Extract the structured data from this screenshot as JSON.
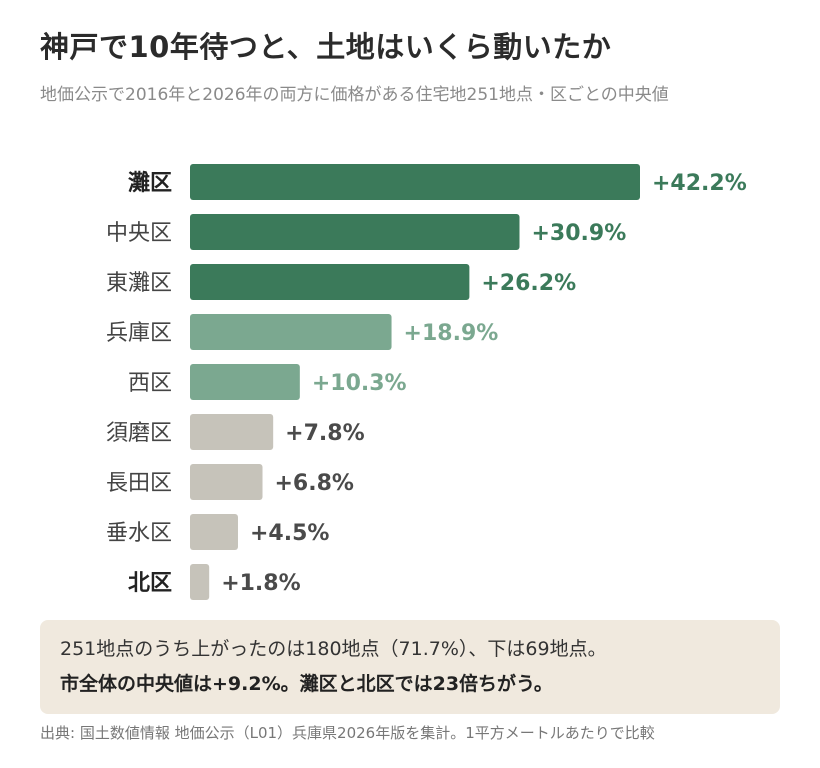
{
  "title": "神戸で10年待つと、土地はいくら動いたか",
  "subtitle": "地価公示で2016年と2026年の両方に価格がある住宅地251地点・区ごとの中央値",
  "chart_data": {
    "type": "bar",
    "orientation": "horizontal",
    "categories": [
      "灘区",
      "中央区",
      "東灘区",
      "兵庫区",
      "西区",
      "須磨区",
      "長田区",
      "垂水区",
      "北区"
    ],
    "values": [
      42.2,
      30.9,
      26.2,
      18.9,
      10.3,
      7.8,
      6.8,
      4.5,
      1.8
    ],
    "value_labels": [
      "+42.2%",
      "+30.9%",
      "+26.2%",
      "+18.9%",
      "+10.3%",
      "+7.8%",
      "+6.8%",
      "+4.5%",
      "+1.8%"
    ],
    "emphasized_categories": [
      "灘区",
      "北区"
    ],
    "bar_colors": [
      "#3b7a5a",
      "#3b7a5a",
      "#3b7a5a",
      "#7ba890",
      "#7ba890",
      "#c6c3ba",
      "#c6c3ba",
      "#c6c3ba",
      "#c6c3ba"
    ],
    "label_colors": [
      "#3b7a5a",
      "#3b7a5a",
      "#3b7a5a",
      "#7ba890",
      "#7ba890",
      "#4a4a4a",
      "#4a4a4a",
      "#4a4a4a",
      "#4a4a4a"
    ],
    "xlim": [
      0,
      42.2
    ],
    "grid": false,
    "legend": "none"
  },
  "note": {
    "line1": "251地点のうち上がったのは180地点（71.7%）、下は69地点。",
    "line2": "市全体の中央値は+9.2%。灘区と北区では23倍ちがう。"
  },
  "source": "出典: 国土数値情報 地価公示（L01）兵庫県2026年版を集計。1平方メートルあたりで比較"
}
